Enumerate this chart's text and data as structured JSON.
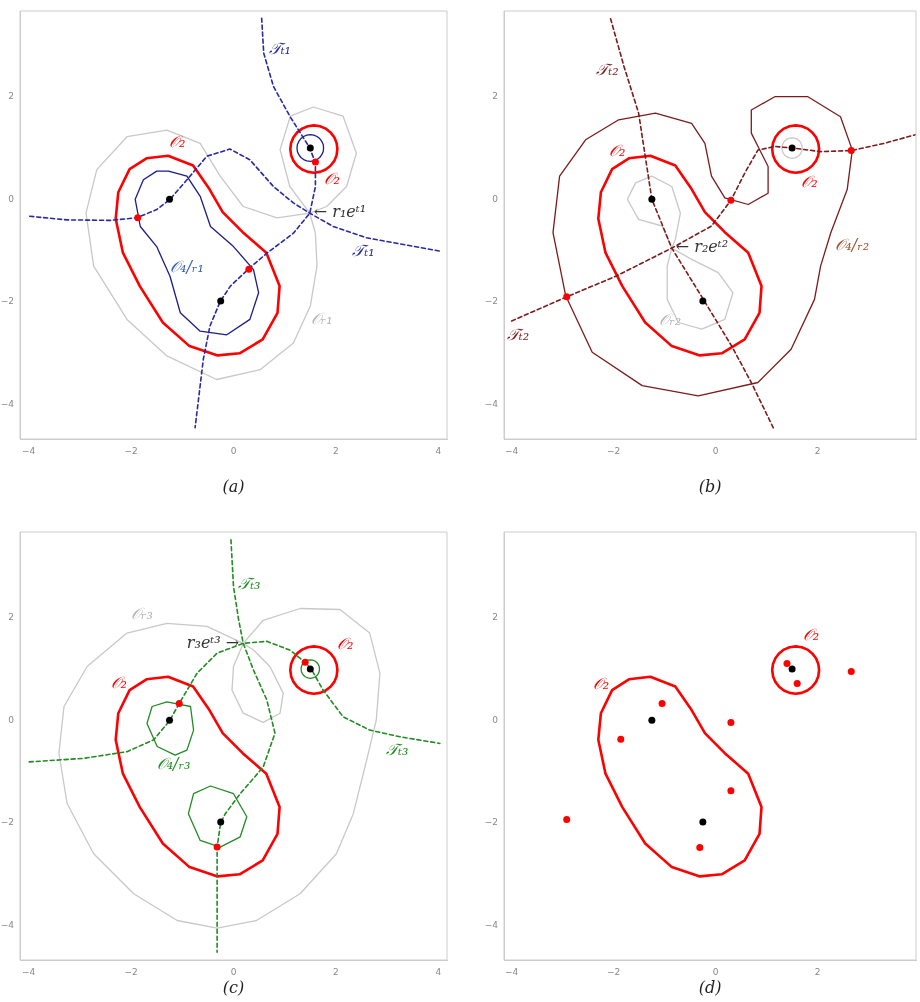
{
  "chart_data": [
    {
      "type": "line",
      "xlabel": "(a)",
      "xlim": [
        -4.17,
        4.17
      ],
      "ylim": [
        -4.67,
        3.67
      ],
      "xticks": [
        -4,
        -2,
        0,
        2,
        4
      ],
      "yticks": [
        -4,
        -2,
        0,
        2
      ],
      "series": [
        {
          "color": "#2a2aa0",
          "marker": "none",
          "line_style": "dashed",
          "x": [
            0.55,
            0.59,
            0.78,
            1.1,
            1.49,
            1.6,
            1.6,
            1.49,
            1.17,
            0.65,
            0.29,
            -0.06,
            -0.26,
            -0.46,
            -0.59,
            -0.75
          ],
          "values": [
            3.53,
            2.85,
            2.2,
            1.62,
            1.0,
            0.71,
            0.25,
            -0.27,
            -0.66,
            -1.05,
            -1.36,
            -1.69,
            -1.99,
            -2.47,
            -3.12,
            -4.45
          ]
        },
        {
          "color": "#2a2aa0",
          "marker": "none",
          "line_style": "dashed",
          "x": [
            -3.98,
            -3.26,
            -2.41,
            -1.89,
            -1.5,
            -1.24,
            -0.91,
            -0.52,
            -0.07,
            0.32,
            0.78,
            1.17,
            1.49,
            1.95,
            2.6,
            4.03
          ],
          "values": [
            -0.33,
            -0.4,
            -0.41,
            -0.36,
            -0.2,
            0,
            0.38,
            0.84,
            0.98,
            0.77,
            0.25,
            -0.07,
            -0.27,
            -0.53,
            -0.75,
            -1.01
          ]
        },
        {
          "type": "scatter",
          "color": "#ff0000",
          "marker": "circle",
          "x": [
            -1.87,
            0.3,
            1.6
          ],
          "values": [
            -0.36,
            -1.36,
            0.73
          ]
        },
        {
          "type": "scatter",
          "color": "#000000",
          "marker": "circle",
          "x": [
            -1.25,
            -0.25,
            1.5
          ],
          "values": [
            0,
            -1.98,
            1
          ]
        }
      ],
      "annotations": [
        {
          "text": "𝒯ₜ₁",
          "x": 0.59,
          "y": 2.85
        },
        {
          "text": "𝒯ₜ₁",
          "x": 2.6,
          "y": -0.75
        },
        "𝒪₂",
        "𝒪₂",
        "𝒪₄/ᵣ₁",
        "𝒪ᵣ₁",
        {
          "text": "← r₁eᵗ¹",
          "x": 1.49,
          "y": -0.27
        }
      ]
    },
    {
      "type": "line",
      "xlabel": "(b)",
      "xlim": [
        -4.15,
        3.93
      ],
      "ylim": [
        -4.67,
        3.67
      ],
      "xticks": [
        -4,
        -2,
        0,
        2
      ],
      "yticks": [
        -4,
        -2,
        0,
        2
      ],
      "series": [
        {
          "color": "#7b1c1c",
          "marker": "none",
          "line_style": "dashed",
          "x": [
            -2.06,
            -1.8,
            -1.51,
            -1.25,
            -0.86,
            -0.24,
            0.31,
            0.7,
            1.14
          ],
          "values": [
            3.52,
            2.6,
            1.68,
            0,
            -0.95,
            -1.95,
            -2.85,
            -3.57,
            -4.47
          ]
        },
        {
          "color": "#7b1c1c",
          "marker": "none",
          "line_style": "dashed",
          "x": [
            -4.0,
            -2.92,
            -1.96,
            -0.86,
            -0.08,
            0.3,
            0.57,
            0.83,
            1.16,
            1.51,
            2.06,
            2.66,
            3.3,
            3.92
          ],
          "values": [
            -2.37,
            -1.9,
            -1.5,
            -0.95,
            -0.52,
            -0.02,
            0.51,
            0.96,
            1.03,
            1.0,
            0.93,
            0.95,
            1.09,
            1.26
          ]
        },
        {
          "type": "scatter",
          "color": "#ff0000",
          "marker": "circle",
          "x": [
            -2.92,
            0.3,
            2.66
          ],
          "values": [
            -1.9,
            -0.02,
            0.95
          ]
        },
        {
          "type": "scatter",
          "color": "#000000",
          "marker": "circle",
          "x": [
            -1.25,
            -0.25,
            1.5
          ],
          "values": [
            0,
            -1.98,
            1
          ]
        }
      ],
      "annotations": [
        {
          "text": "𝒯ₜ₂",
          "x": -1.8,
          "y": 2.6
        },
        {
          "text": "𝒯ₜ₂",
          "x": -4.0,
          "y": -2.37
        },
        "𝒪₂",
        "𝒪₂",
        "𝒪₄/ᵣ₂",
        "𝒪ᵣ₂",
        {
          "text": "← r₂eᵗ²",
          "x": -0.86,
          "y": -0.95
        }
      ]
    },
    {
      "type": "line",
      "xlabel": "(c)",
      "xlim": [
        -4.17,
        4.17
      ],
      "ylim": [
        -4.67,
        3.67
      ],
      "xticks": [
        -4,
        -2,
        0,
        2,
        4
      ],
      "yticks": [
        -4,
        -2,
        0,
        2
      ],
      "series": [
        {
          "color": "#228b22",
          "marker": "none",
          "line_style": "dashed",
          "x": [
            -0.05,
            0,
            0.1,
            0.19,
            0.39,
            0.65,
            0.81,
            0.58,
            0.13,
            -0.16,
            -0.25,
            -0.32,
            -0.32,
            -0.32
          ],
          "values": [
            3.52,
            2.61,
            1.96,
            1.5,
            0.98,
            0.4,
            -0.25,
            -0.91,
            -1.43,
            -1.82,
            -1.99,
            -2.47,
            -3.25,
            -4.52
          ]
        },
        {
          "color": "#228b22",
          "marker": "none",
          "line_style": "dashed",
          "x": [
            -3.99,
            -2.92,
            -2.08,
            -1.56,
            -1.25,
            -1.06,
            -0.71,
            -0.32,
            0.19,
            0.65,
            1.1,
            1.4,
            1.53,
            1.75,
            2.14,
            2.66,
            3.25,
            4.03
          ],
          "values": [
            -0.81,
            -0.74,
            -0.61,
            -0.38,
            -0.01,
            0.33,
            0.92,
            1.31,
            1.5,
            1.54,
            1.37,
            1.13,
            0.98,
            0.59,
            0.07,
            -0.19,
            -0.32,
            -0.45
          ]
        },
        {
          "type": "scatter",
          "color": "#ff0000",
          "marker": "circle",
          "x": [
            -1.06,
            -0.32,
            1.4
          ],
          "values": [
            0.33,
            -2.47,
            1.13
          ]
        },
        {
          "type": "scatter",
          "color": "#000000",
          "marker": "circle",
          "x": [
            -1.25,
            -0.25,
            1.5
          ],
          "values": [
            0,
            -1.98,
            1
          ]
        }
      ],
      "annotations": [
        {
          "text": "𝒯ₜ₃",
          "x": 0,
          "y": 2.61
        },
        {
          "text": "𝒯ₜ₃",
          "x": 3.25,
          "y": -0.32
        },
        "𝒪ᵣ₃",
        "𝒪₂",
        "𝒪₂",
        "𝒪₄/ᵣ₃",
        {
          "text": "r₃eᵗ³ →",
          "x": 0.19,
          "y": 1.5
        }
      ]
    },
    {
      "type": "scatter",
      "xlabel": "(d)",
      "xlim": [
        -4.15,
        3.93
      ],
      "ylim": [
        -4.67,
        3.67
      ],
      "xticks": [
        -4,
        -2,
        0,
        2
      ],
      "yticks": [
        -4,
        -2,
        0,
        2
      ],
      "series": [
        {
          "color": "#ff0000",
          "marker": "circle",
          "x": [
            -1.86,
            -1.05,
            0.3,
            0.3,
            -0.31,
            -2.92,
            1.4,
            1.6,
            2.66
          ],
          "values": [
            -0.37,
            0.33,
            -0.04,
            -1.37,
            -2.48,
            -1.93,
            1.11,
            0.72,
            0.95
          ]
        },
        {
          "color": "#000000",
          "marker": "circle",
          "x": [
            -1.25,
            -0.25,
            1.5
          ],
          "values": [
            0,
            -1.98,
            1
          ]
        }
      ],
      "annotations": [
        "𝒪₂",
        "𝒪₂"
      ]
    }
  ]
}
